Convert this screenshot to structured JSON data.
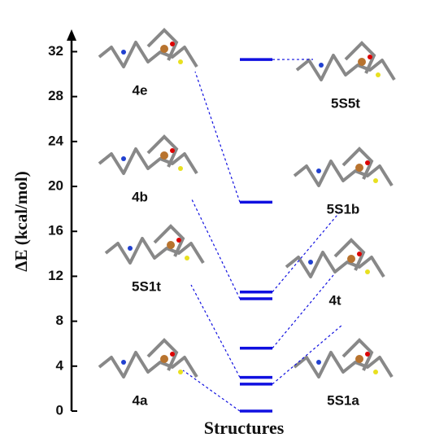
{
  "chart_data": {
    "type": "energy_levels",
    "ylabel": "ΔE (kcal/mol)",
    "xlabel": "Structures",
    "ylim": [
      0,
      33.7
    ],
    "yticks": [
      0,
      4,
      8,
      12,
      16,
      20,
      24,
      28,
      32
    ],
    "color": "#1010e0",
    "structures": [
      {
        "name": "5S5t",
        "value": 31.3,
        "side": "right"
      },
      {
        "name": "4e",
        "value": 18.6,
        "side": "left"
      },
      {
        "name": "5S1b",
        "value": 10.6,
        "side": "right"
      },
      {
        "name": "4b",
        "value": 10.0,
        "side": "left"
      },
      {
        "name": "4t",
        "value": 5.6,
        "side": "right"
      },
      {
        "name": "5S1t",
        "value": 3.0,
        "side": "left"
      },
      {
        "name": "5S1a",
        "value": 2.4,
        "side": "right"
      },
      {
        "name": "4a",
        "value": 0,
        "side": "left"
      }
    ]
  }
}
